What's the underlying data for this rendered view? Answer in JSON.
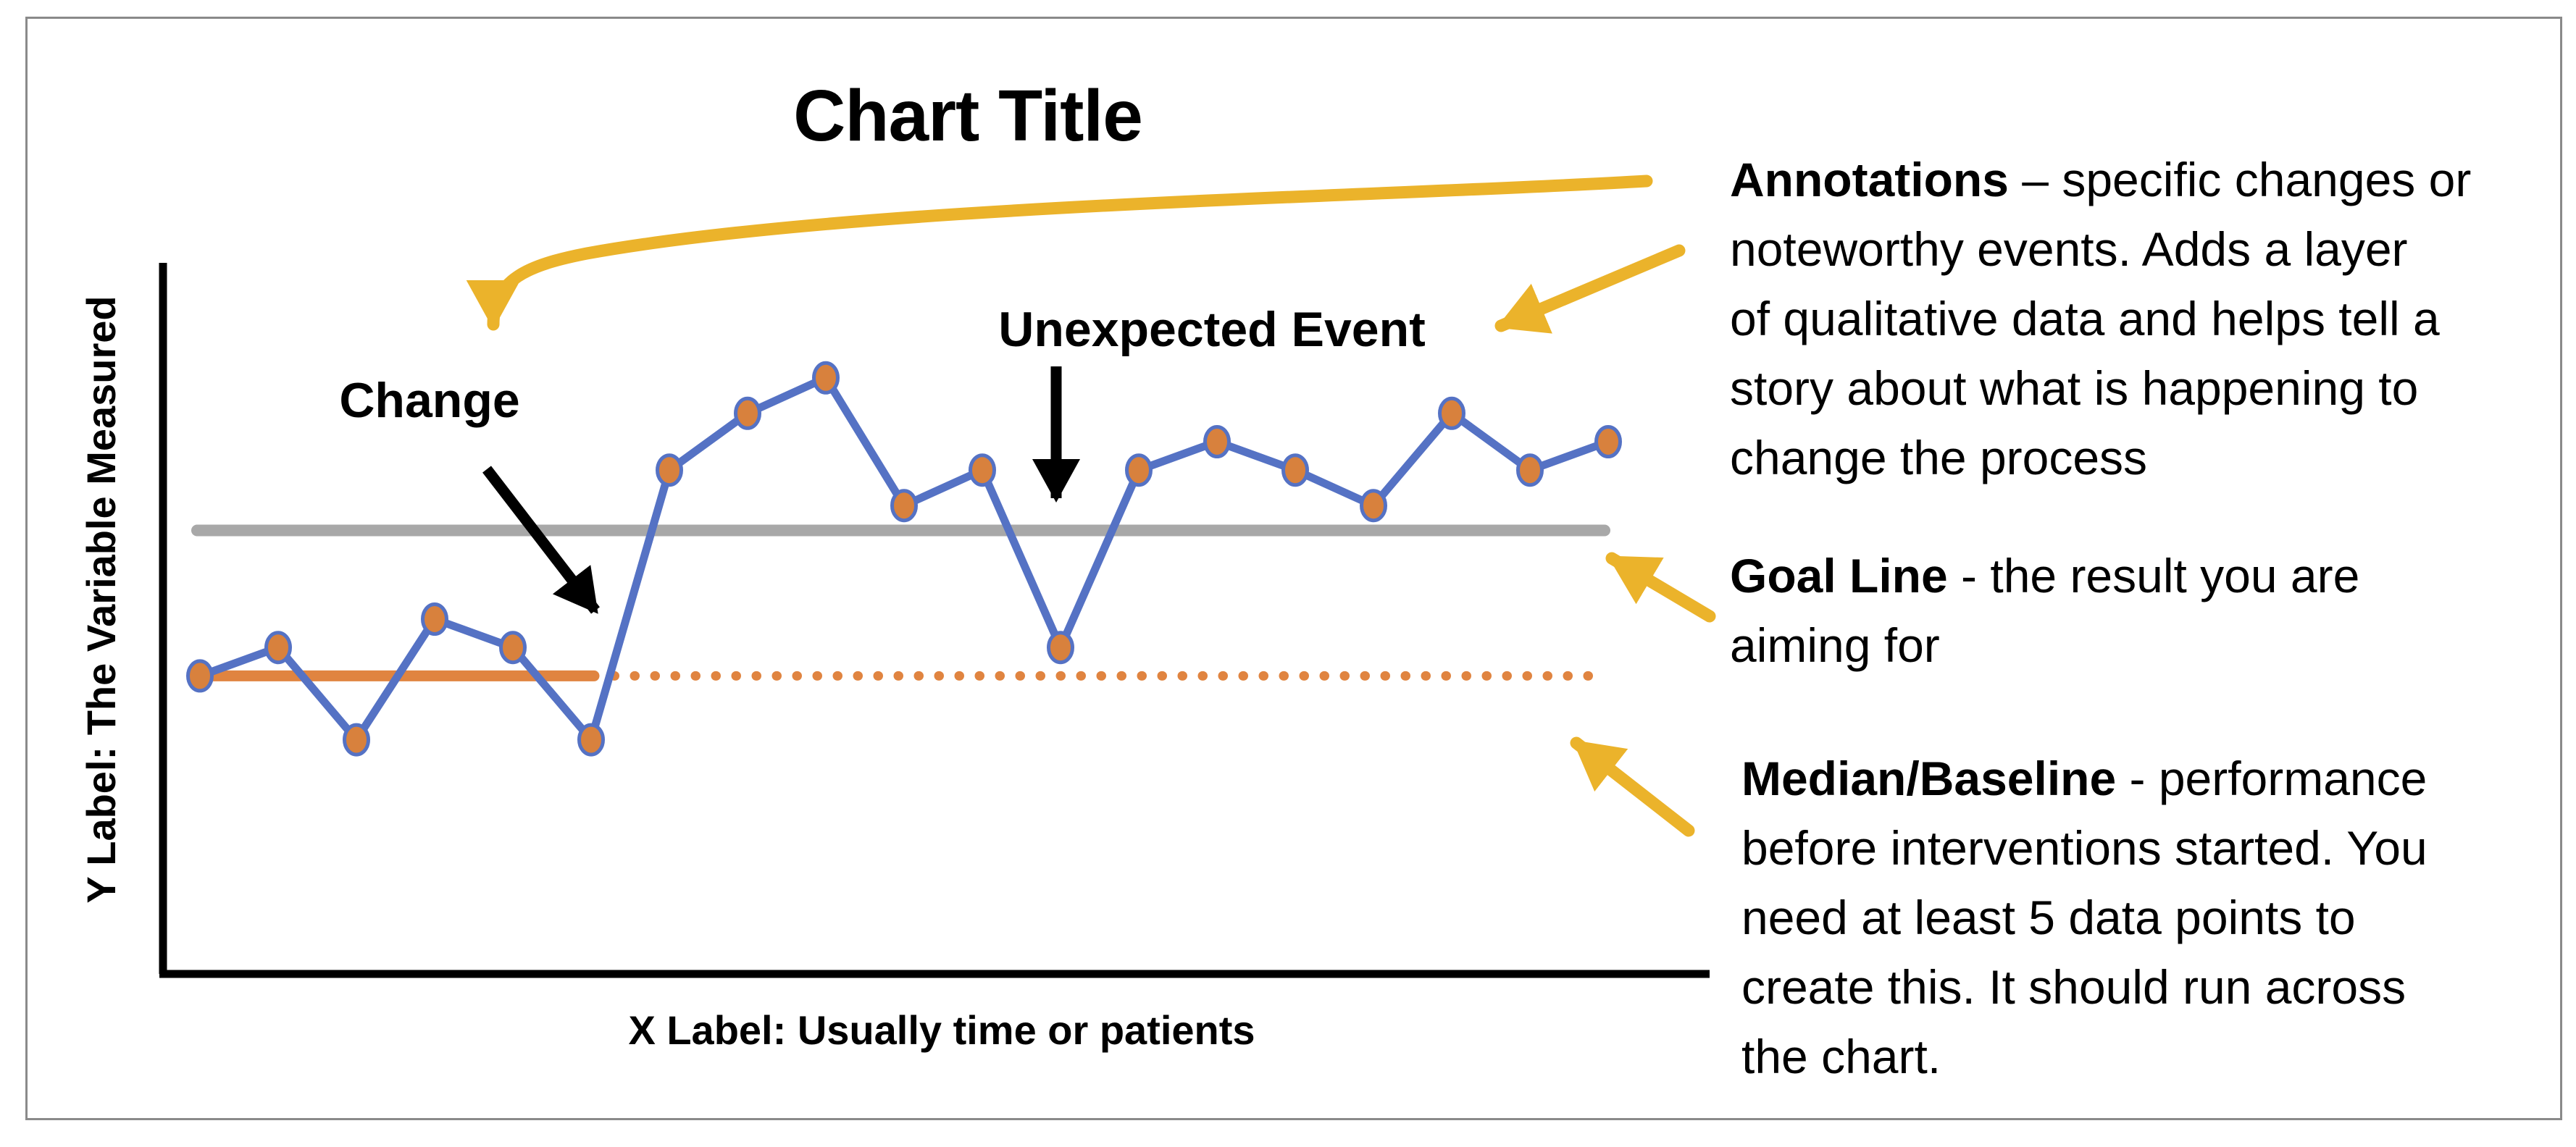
{
  "figure": {
    "title": "Chart Title",
    "x_axis_label": "X Label: Usually time or patients",
    "y_axis_label": "Y Label: The Variable Measured"
  },
  "chart_data": {
    "type": "line",
    "title": "Chart Title",
    "xlabel": "X Label: Usually time or patients",
    "ylabel": "Y Label: The Variable Measured",
    "x": [
      1,
      2,
      3,
      4,
      5,
      6,
      7,
      8,
      9,
      10,
      11,
      12,
      13,
      14,
      15,
      16,
      17,
      18,
      19
    ],
    "series": [
      {
        "name": "measured-variable",
        "values": [
          4.2,
          4.6,
          3.3,
          5.0,
          4.6,
          3.3,
          7.1,
          7.9,
          8.4,
          6.6,
          7.1,
          4.6,
          7.1,
          7.5,
          7.1,
          6.6,
          7.9,
          7.1,
          7.5
        ]
      }
    ],
    "ylim": [
      0,
      10
    ],
    "grid": false,
    "legend": "none",
    "goal_line": {
      "label": "Goal Line",
      "value": 6.25
    },
    "median_baseline": {
      "label": "Median/Baseline",
      "value": 4.2,
      "solid_through_x": 6
    },
    "annotations": [
      {
        "label": "Change",
        "target_x": 6.5
      },
      {
        "label": "Unexpected Event",
        "target_x": 12
      }
    ]
  },
  "callouts": [
    {
      "bold": "Annotations",
      "lines": [
        " – specific changes or",
        "noteworthy events. Adds a layer",
        "of qualitative data and helps tell a",
        "story about what is happening to",
        "change the process"
      ]
    },
    {
      "bold": "Goal Line",
      "lines": [
        " - the result you are",
        "aiming for"
      ]
    },
    {
      "bold": "Median/Baseline",
      "lines": [
        " - performance",
        "before interventions started. You",
        "need at least 5 data points to",
        "create this. It should run across",
        "the chart."
      ]
    }
  ],
  "colors": {
    "series_line": "#5572C4",
    "marker_fill": "#D8813D",
    "median_line": "#E08440",
    "goal_line": "#A8A8A8",
    "callout_arrow": "#EBB32B",
    "annotation_arrow": "#000000",
    "border": "#8A8A8A"
  }
}
